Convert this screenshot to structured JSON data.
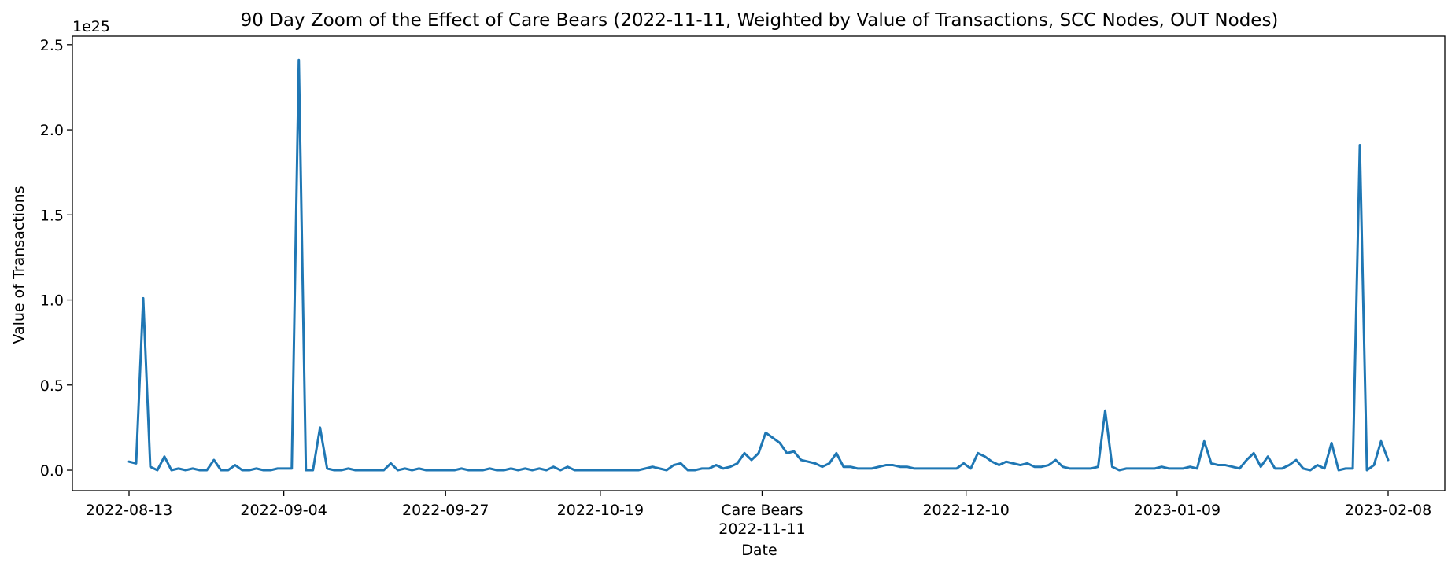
{
  "chart_data": {
    "type": "line",
    "title": "90 Day Zoom of the Effect of Care Bears (2022-11-11, Weighted by Value of Transactions, SCC Nodes, OUT Nodes)",
    "xlabel": "Date",
    "ylabel": "Value of Transactions",
    "y_offset_text": "1e25",
    "event": {
      "label": "Care Bears",
      "date": "2022-11-11"
    },
    "x_range": [
      "2022-08-13",
      "2023-02-08"
    ],
    "ylim": [
      -0.12,
      2.55
    ],
    "y_ticks": [
      "0.0",
      "0.5",
      "1.0",
      "1.5",
      "2.0",
      "2.5"
    ],
    "x_ticks": [
      "2022-08-13",
      "2022-09-04",
      "2022-09-27",
      "2022-10-19",
      "2022-11-11",
      "2022-12-10",
      "2023-01-09",
      "2023-02-08"
    ],
    "grid": false,
    "line_color": "#1f77b4",
    "series": [
      {
        "values": [
          0.05,
          0.04,
          1.01,
          0.02,
          0.0,
          0.08,
          0.0,
          0.01,
          0.0,
          0.01,
          0.0,
          0.0,
          0.06,
          0.0,
          0.0,
          0.03,
          0.0,
          0.0,
          0.01,
          0.0,
          0.0,
          0.01,
          0.01,
          0.01,
          2.41,
          0.0,
          0.0,
          0.25,
          0.01,
          0.0,
          0.0,
          0.01,
          0.0,
          0.0,
          0.0,
          0.0,
          0.0,
          0.04,
          0.0,
          0.01,
          0.0,
          0.01,
          0.0,
          0.0,
          0.0,
          0.0,
          0.0,
          0.01,
          0.0,
          0.0,
          0.0,
          0.01,
          0.0,
          0.0,
          0.01,
          0.0,
          0.01,
          0.0,
          0.01,
          0.0,
          0.02,
          0.0,
          0.02,
          0.0,
          0.0,
          0.0,
          0.0,
          0.0,
          0.0,
          0.0,
          0.0,
          0.0,
          0.0,
          0.01,
          0.02,
          0.01,
          0.0,
          0.03,
          0.04,
          0.0,
          0.0,
          0.01,
          0.01,
          0.03,
          0.01,
          0.02,
          0.04,
          0.1,
          0.06,
          0.1,
          0.22,
          0.19,
          0.16,
          0.1,
          0.11,
          0.06,
          0.05,
          0.04,
          0.02,
          0.04,
          0.1,
          0.02,
          0.02,
          0.01,
          0.01,
          0.01,
          0.02,
          0.03,
          0.03,
          0.02,
          0.02,
          0.01,
          0.01,
          0.01,
          0.01,
          0.01,
          0.01,
          0.01,
          0.04,
          0.01,
          0.1,
          0.08,
          0.05,
          0.03,
          0.05,
          0.04,
          0.03,
          0.04,
          0.02,
          0.02,
          0.03,
          0.06,
          0.02,
          0.01,
          0.01,
          0.01,
          0.01,
          0.02,
          0.35,
          0.02,
          0.0,
          0.01,
          0.01,
          0.01,
          0.01,
          0.01,
          0.02,
          0.01,
          0.01,
          0.01,
          0.02,
          0.01,
          0.17,
          0.04,
          0.03,
          0.03,
          0.02,
          0.01,
          0.06,
          0.1,
          0.02,
          0.08,
          0.01,
          0.01,
          0.03,
          0.06,
          0.01,
          0.0,
          0.03,
          0.01,
          0.16,
          0.0,
          0.01,
          0.01,
          1.91,
          0.0,
          0.03,
          0.17,
          0.06
        ]
      }
    ]
  }
}
